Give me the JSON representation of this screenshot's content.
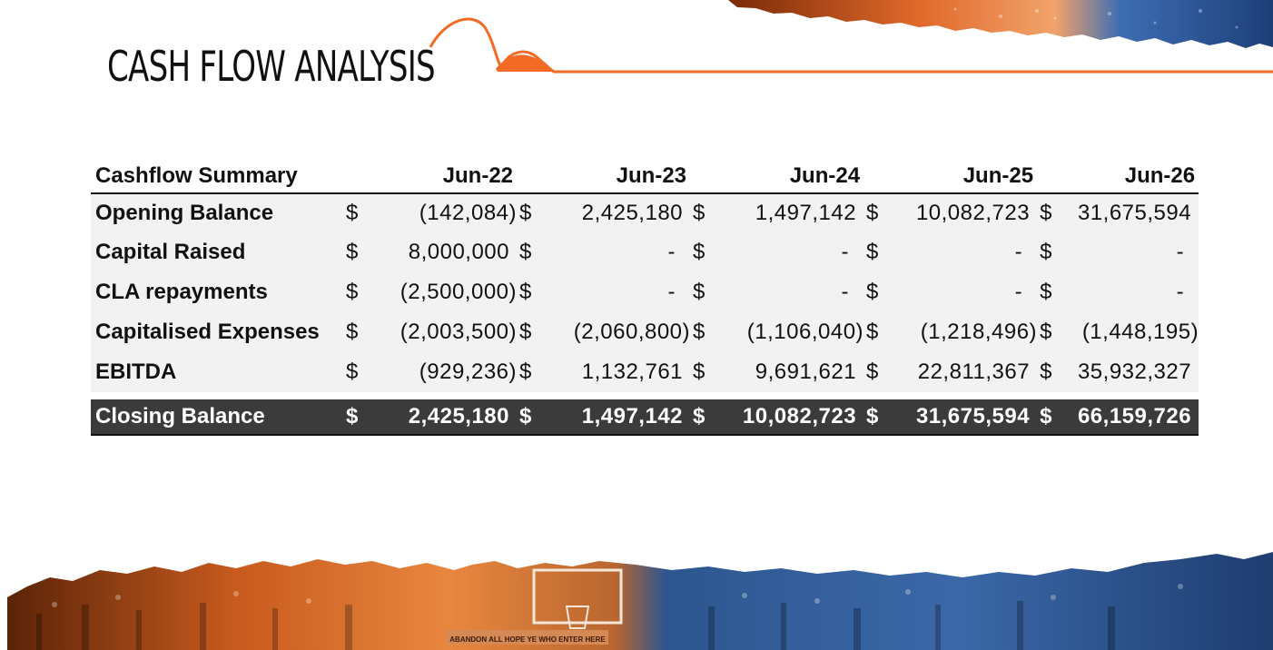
{
  "title": "CASH FLOW ANALYSIS",
  "colors": {
    "accent": "#f26a23",
    "header_dark": "#3b3b3b",
    "row_bg": "#f2f2f2",
    "crowd_blue": "#2a4f86"
  },
  "table": {
    "label_header": "Cashflow Summary",
    "periods": [
      "Jun-22",
      "Jun-23",
      "Jun-24",
      "Jun-25",
      "Jun-26"
    ],
    "rows": [
      {
        "label": "Opening Balance",
        "values": [
          "(142,084)",
          "2,425,180",
          "1,497,142",
          "10,082,723",
          "31,675,594"
        ]
      },
      {
        "label": "Capital Raised",
        "values": [
          "8,000,000",
          "-",
          "-",
          "-",
          "-"
        ]
      },
      {
        "label": "CLA repayments",
        "values": [
          "(2,500,000)",
          "-",
          "-",
          "-",
          "-"
        ]
      },
      {
        "label": "Capitalised Expenses",
        "values": [
          "(2,003,500)",
          "(2,060,800)",
          "(1,106,040)",
          "(1,218,496)",
          "(1,448,195)"
        ]
      },
      {
        "label": "EBITDA",
        "values": [
          "(929,236)",
          "1,132,761",
          "9,691,621",
          "22,811,367",
          "35,932,327"
        ]
      }
    ],
    "total": {
      "label": "Closing Balance",
      "values": [
        "2,425,180",
        "1,497,142",
        "10,082,723",
        "31,675,594",
        "66,159,726"
      ]
    },
    "currency": "$"
  },
  "banner_text": "ABANDON ALL HOPE YE WHO ENTER HERE"
}
